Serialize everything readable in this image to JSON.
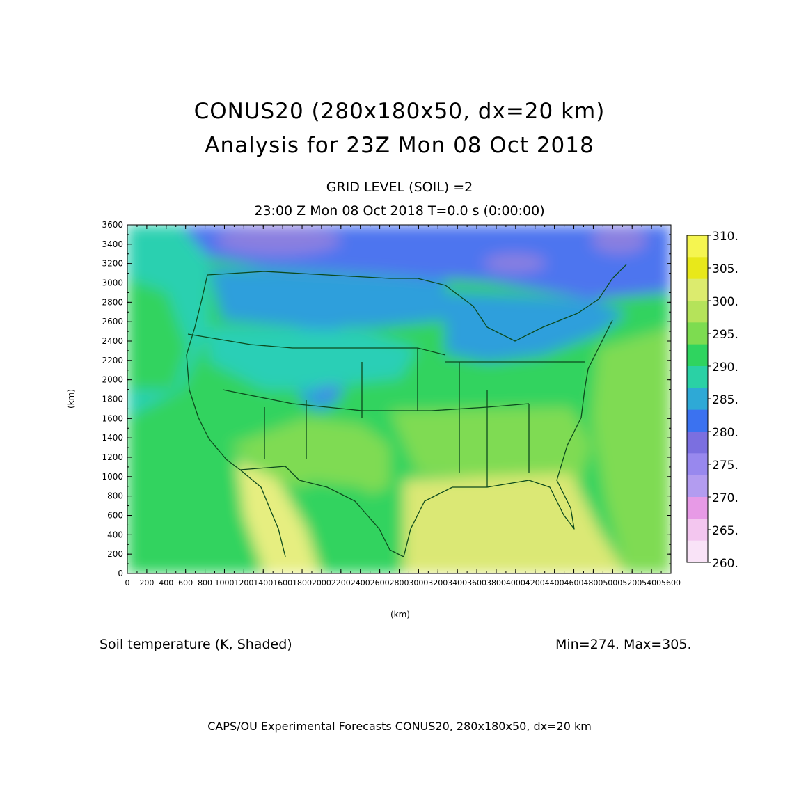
{
  "title": {
    "line1": "CONUS20 (280x180x50, dx=20 km)",
    "line2": "Analysis for 23Z Mon 08 Oct 2018"
  },
  "subtitle": {
    "line1": "GRID LEVEL (SOIL) =2",
    "line2": "23:00 Z Mon 08 Oct 2018    T=0.0 s (0:00:00)"
  },
  "caption": {
    "field": "Soil temperature (K, Shaded)",
    "range": "Min=274.  Max=305."
  },
  "footer": "CAPS/OU Experimental Forecasts  CONUS20, 280x180x50, dx=20 km",
  "axes": {
    "xlabel": "(km)",
    "ylabel": "(km)",
    "xticks": [
      0,
      200,
      400,
      600,
      800,
      1000,
      1200,
      1400,
      1600,
      1800,
      2000,
      2200,
      2400,
      2600,
      2800,
      3000,
      3200,
      3400,
      3600,
      3800,
      4000,
      4200,
      4400,
      4600,
      4800,
      5000,
      5200,
      5400,
      5600
    ],
    "yticks": [
      0,
      200,
      400,
      600,
      800,
      1000,
      1200,
      1400,
      1600,
      1800,
      2000,
      2200,
      2400,
      2600,
      2800,
      3000,
      3200,
      3400,
      3600
    ],
    "xlim": [
      0,
      5600
    ],
    "ylim": [
      0,
      3600
    ]
  },
  "colorbar": {
    "labels": [
      "310.",
      "305.",
      "300.",
      "295.",
      "290.",
      "285.",
      "280.",
      "275.",
      "270.",
      "265.",
      "260."
    ],
    "colors": [
      "#f5f550",
      "#e8e81a",
      "#dceb6e",
      "#b5e35a",
      "#7ddc50",
      "#2fd45f",
      "#2ad1a5",
      "#2ea9d6",
      "#3b72f0",
      "#7b6fe0",
      "#9888ee",
      "#b39cf0",
      "#e79ae6",
      "#f3c6ef",
      "#f9e3f7"
    ]
  },
  "map": {
    "colors": {
      "pacific": "#2fd06a",
      "pacific_cool": "#2cd0b0",
      "canada": "#4d74ef",
      "canada_cold": "#8a7fe0",
      "north_tier": "#2f9fdc",
      "central": "#2ccfb6",
      "mid": "#31d35f",
      "south": "#7fdb52",
      "gulf": "#dbe874",
      "mexico_coast": "#e6ee80",
      "outline": "#0c4a1d"
    }
  }
}
